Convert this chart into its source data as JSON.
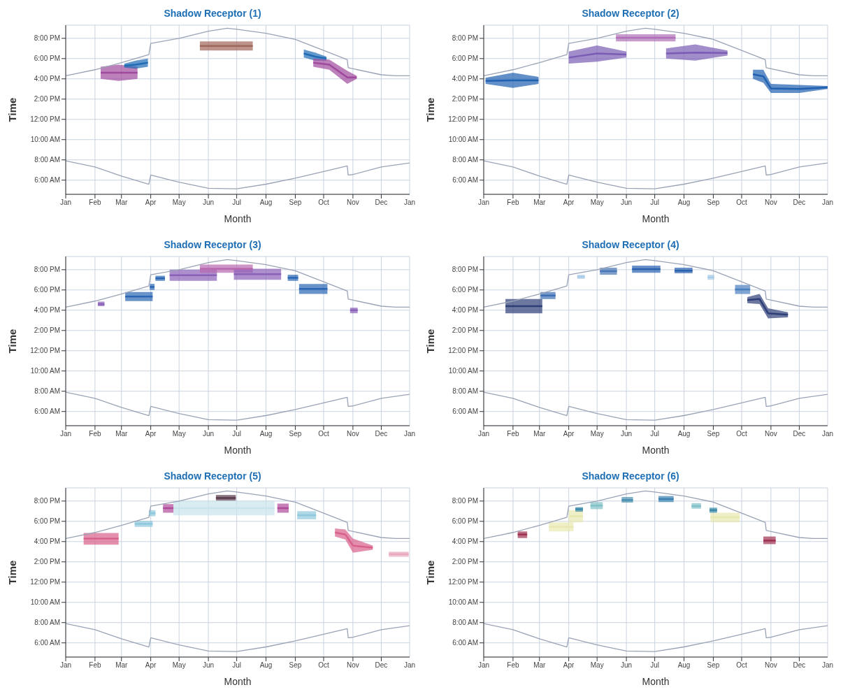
{
  "chart_data": [
    {
      "type": "line",
      "title": "Shadow Receptor (1)",
      "xlabel": "Month",
      "ylabel": "Time",
      "xlim": [
        "--01-01",
        "--12-31"
      ],
      "ylim": [
        4.6,
        21.3
      ],
      "grid": true,
      "annotations": [
        "Jan"
      ],
      "xticks": [
        {
          "value": "--01-01",
          "label": "Jan"
        },
        {
          "value": "--02-01",
          "label": "Feb"
        },
        {
          "value": "--03-01",
          "label": "Mar"
        },
        {
          "value": "--04-01",
          "label": "Apr"
        },
        {
          "value": "--05-01",
          "label": "May"
        },
        {
          "value": "--06-01",
          "label": "Jun"
        },
        {
          "value": "--07-01",
          "label": "Jul"
        },
        {
          "value": "--08-01",
          "label": "Aug"
        },
        {
          "value": "--09-01",
          "label": "Sep"
        },
        {
          "value": "--10-01",
          "label": "Oct"
        },
        {
          "value": "--11-01",
          "label": "Nov"
        },
        {
          "value": "--12-01",
          "label": "Dec"
        }
      ],
      "yticks": [
        {
          "value": 6,
          "label": "6:00 AM"
        },
        {
          "value": 8,
          "label": "8:00 AM"
        },
        {
          "value": 10,
          "label": "10:00 AM"
        },
        {
          "value": 12,
          "label": "12:00 PM"
        },
        {
          "value": 14,
          "label": "2:00 PM"
        },
        {
          "value": 16,
          "label": "4:00 PM"
        },
        {
          "value": 18,
          "label": "6:00 PM"
        },
        {
          "value": 20,
          "label": "8:00 PM"
        }
      ],
      "series": [
        {
          "color": "#9aa3b5",
          "x": [
            "--01-01",
            "--02-01",
            "--03-01",
            "--03-30",
            "--04-01",
            "--05-01",
            "--06-01",
            "--06-21",
            "--07-01",
            "--08-01",
            "--09-01",
            "--10-01",
            "--10-26",
            "--10-27",
            "--12-01",
            "--12-16",
            "--12-31"
          ],
          "values": [
            16.3,
            16.9,
            17.6,
            18.4,
            19.5,
            20.0,
            20.7,
            21.0,
            20.9,
            20.5,
            19.9,
            18.8,
            17.9,
            17.1,
            16.4,
            16.3,
            16.3
          ]
        },
        {
          "color": "#9aa3b5",
          "x": [
            "--01-01",
            "--02-01",
            "--03-01",
            "--03-30",
            "--04-01",
            "--05-01",
            "--06-01",
            "--07-01",
            "--08-01",
            "--09-01",
            "--10-01",
            "--10-26",
            "--10-27",
            "--11-01",
            "--12-01",
            "--12-31"
          ],
          "values": [
            7.9,
            7.3,
            6.4,
            5.6,
            6.5,
            5.8,
            5.2,
            5.15,
            5.6,
            6.2,
            6.85,
            7.4,
            6.5,
            6.55,
            7.3,
            7.7
          ]
        },
        {
          "color": "#a04a9e",
          "x": [
            "--02-07",
            "--02-26",
            "--03-18"
          ],
          "lower": [
            16.0,
            15.8,
            16.0
          ],
          "upper": [
            17.2,
            17.4,
            17.2
          ],
          "values": [
            16.6,
            16.6,
            16.6
          ]
        },
        {
          "color": "#1f6bb5",
          "x": [
            "--03-04",
            "--03-16",
            "--03-29"
          ],
          "lower": [
            17.1,
            17.0,
            17.2
          ],
          "upper": [
            17.5,
            17.8,
            18.0
          ],
          "values": [
            17.3,
            17.4,
            17.6
          ]
        },
        {
          "color": "#a0665a",
          "x": [
            "--05-23",
            "--06-19",
            "--07-18"
          ],
          "lower": [
            18.8,
            18.8,
            18.8
          ],
          "upper": [
            19.7,
            19.7,
            19.7
          ],
          "values": [
            19.25,
            19.25,
            19.25
          ]
        },
        {
          "color": "#1f6bb5",
          "x": [
            "--09-10",
            "--09-22",
            "--10-04"
          ],
          "lower": [
            18.1,
            17.8,
            17.8
          ],
          "upper": [
            18.9,
            18.6,
            18.2
          ],
          "values": [
            18.5,
            18.2,
            18.0
          ]
        },
        {
          "color": "#a04a9e",
          "x": [
            "--09-20",
            "--10-07",
            "--10-26",
            "--11-05"
          ],
          "lower": [
            17.2,
            16.9,
            15.5,
            16.0
          ],
          "upper": [
            18.0,
            17.9,
            16.8,
            16.3
          ],
          "values": [
            17.6,
            17.4,
            16.15,
            16.15
          ]
        }
      ]
    },
    {
      "type": "line",
      "title": "Shadow Receptor (2)",
      "xlabel": "Month",
      "ylabel": "Time",
      "xlim": [
        "--01-01",
        "--12-31"
      ],
      "ylim": [
        4.6,
        21.3
      ],
      "grid": true,
      "annotations": [
        "Jan"
      ],
      "xticks": [
        {
          "value": "--01-01",
          "label": "Jan"
        },
        {
          "value": "--02-01",
          "label": "Feb"
        },
        {
          "value": "--03-01",
          "label": "Mar"
        },
        {
          "value": "--04-01",
          "label": "Apr"
        },
        {
          "value": "--05-01",
          "label": "May"
        },
        {
          "value": "--06-01",
          "label": "Jun"
        },
        {
          "value": "--07-01",
          "label": "Jul"
        },
        {
          "value": "--08-01",
          "label": "Aug"
        },
        {
          "value": "--09-01",
          "label": "Sep"
        },
        {
          "value": "--10-01",
          "label": "Oct"
        },
        {
          "value": "--11-01",
          "label": "Nov"
        },
        {
          "value": "--12-01",
          "label": "Dec"
        }
      ],
      "yticks": [
        {
          "value": 6,
          "label": "6:00 AM"
        },
        {
          "value": 8,
          "label": "8:00 AM"
        },
        {
          "value": 10,
          "label": "10:00 AM"
        },
        {
          "value": 12,
          "label": "12:00 PM"
        },
        {
          "value": 14,
          "label": "2:00 PM"
        },
        {
          "value": 16,
          "label": "4:00 PM"
        },
        {
          "value": 18,
          "label": "6:00 PM"
        },
        {
          "value": 20,
          "label": "8:00 PM"
        }
      ],
      "series": [
        {
          "color": "#9aa3b5",
          "x": [
            "--01-01",
            "--02-01",
            "--03-01",
            "--03-30",
            "--04-01",
            "--05-01",
            "--06-01",
            "--06-21",
            "--07-01",
            "--08-01",
            "--09-01",
            "--10-01",
            "--10-26",
            "--10-27",
            "--12-01",
            "--12-16",
            "--12-31"
          ],
          "values": [
            16.3,
            16.9,
            17.6,
            18.4,
            19.5,
            20.0,
            20.7,
            21.0,
            20.9,
            20.5,
            19.9,
            18.8,
            17.9,
            17.1,
            16.4,
            16.3,
            16.3
          ]
        },
        {
          "color": "#9aa3b5",
          "x": [
            "--01-01",
            "--02-01",
            "--03-01",
            "--03-30",
            "--04-01",
            "--05-01",
            "--06-01",
            "--07-01",
            "--08-01",
            "--09-01",
            "--10-01",
            "--10-26",
            "--10-27",
            "--11-01",
            "--12-01",
            "--12-31"
          ],
          "values": [
            7.9,
            7.3,
            6.4,
            5.6,
            6.5,
            5.8,
            5.2,
            5.15,
            5.6,
            6.2,
            6.85,
            7.4,
            6.5,
            6.55,
            7.3,
            7.7
          ]
        },
        {
          "color": "#2060b0",
          "x": [
            "--01-03",
            "--02-01",
            "--02-28"
          ],
          "lower": [
            15.5,
            15.1,
            15.5
          ],
          "upper": [
            16.1,
            16.6,
            16.2
          ],
          "values": [
            15.8,
            15.85,
            15.85
          ]
        },
        {
          "color": "#7a5cb5",
          "x": [
            "--04-01",
            "--05-01",
            "--06-01"
          ],
          "lower": [
            17.5,
            17.7,
            18.1
          ],
          "upper": [
            18.7,
            19.3,
            18.7
          ],
          "values": [
            18.1,
            18.5,
            18.4
          ]
        },
        {
          "color": "#b070b8",
          "x": [
            "--05-21",
            "--07-23"
          ],
          "lower": [
            19.7,
            19.7
          ],
          "upper": [
            20.4,
            20.4
          ],
          "values": [
            20.05,
            20.05
          ]
        },
        {
          "color": "#7a5cb5",
          "x": [
            "--07-13",
            "--08-13",
            "--09-16"
          ],
          "lower": [
            18.0,
            17.8,
            18.3
          ],
          "upper": [
            19.0,
            19.4,
            18.8
          ],
          "values": [
            18.5,
            18.6,
            18.55
          ]
        },
        {
          "color": "#2060b0",
          "x": [
            "--10-13",
            "--10-24",
            "--11-01",
            "--12-01",
            "--12-31"
          ],
          "lower": [
            16.0,
            15.6,
            14.6,
            14.6,
            15.0
          ],
          "upper": [
            16.9,
            16.9,
            15.5,
            15.4,
            15.3
          ],
          "values": [
            16.45,
            16.25,
            15.05,
            15.0,
            15.15
          ]
        }
      ]
    },
    {
      "type": "line",
      "title": "Shadow Receptor (3)",
      "xlabel": "Month",
      "ylabel": "Time",
      "xlim": [
        "--01-01",
        "--12-31"
      ],
      "ylim": [
        4.6,
        21.3
      ],
      "grid": true,
      "annotations": [
        "Jan"
      ],
      "xticks": [
        {
          "value": "--01-01",
          "label": "Jan"
        },
        {
          "value": "--02-01",
          "label": "Feb"
        },
        {
          "value": "--03-01",
          "label": "Mar"
        },
        {
          "value": "--04-01",
          "label": "Apr"
        },
        {
          "value": "--05-01",
          "label": "May"
        },
        {
          "value": "--06-01",
          "label": "Jun"
        },
        {
          "value": "--07-01",
          "label": "Jul"
        },
        {
          "value": "--08-01",
          "label": "Aug"
        },
        {
          "value": "--09-01",
          "label": "Sep"
        },
        {
          "value": "--10-01",
          "label": "Oct"
        },
        {
          "value": "--11-01",
          "label": "Nov"
        },
        {
          "value": "--12-01",
          "label": "Dec"
        }
      ],
      "yticks": [
        {
          "value": 6,
          "label": "6:00 AM"
        },
        {
          "value": 8,
          "label": "8:00 AM"
        },
        {
          "value": 10,
          "label": "10:00 AM"
        },
        {
          "value": 12,
          "label": "12:00 PM"
        },
        {
          "value": 14,
          "label": "2:00 PM"
        },
        {
          "value": 16,
          "label": "4:00 PM"
        },
        {
          "value": 18,
          "label": "6:00 PM"
        },
        {
          "value": 20,
          "label": "8:00 PM"
        }
      ],
      "series": [
        {
          "color": "#9aa3b5",
          "x": [
            "--01-01",
            "--02-01",
            "--03-01",
            "--03-30",
            "--04-01",
            "--05-01",
            "--06-01",
            "--06-21",
            "--07-01",
            "--08-01",
            "--09-01",
            "--10-01",
            "--10-26",
            "--10-27",
            "--12-01",
            "--12-16",
            "--12-31"
          ],
          "values": [
            16.3,
            16.9,
            17.6,
            18.4,
            19.5,
            20.0,
            20.7,
            21.0,
            20.9,
            20.5,
            19.9,
            18.8,
            17.9,
            17.1,
            16.4,
            16.3,
            16.3
          ]
        },
        {
          "color": "#9aa3b5",
          "x": [
            "--01-01",
            "--02-01",
            "--03-01",
            "--03-30",
            "--04-01",
            "--05-01",
            "--06-01",
            "--07-01",
            "--08-01",
            "--09-01",
            "--10-01",
            "--10-26",
            "--10-27",
            "--11-01",
            "--12-01",
            "--12-31"
          ],
          "values": [
            7.9,
            7.3,
            6.4,
            5.6,
            6.5,
            5.8,
            5.2,
            5.15,
            5.6,
            6.2,
            6.85,
            7.4,
            6.5,
            6.55,
            7.3,
            7.7
          ]
        },
        {
          "color": "#8a60b8",
          "x": [
            "--02-04",
            "--02-11"
          ],
          "lower": [
            16.4,
            16.4
          ],
          "upper": [
            16.85,
            16.85
          ],
          "values": [
            16.6,
            16.6
          ]
        },
        {
          "color": "#2a66b4",
          "x": [
            "--03-05",
            "--04-03"
          ],
          "lower": [
            16.9,
            16.9
          ],
          "upper": [
            17.8,
            17.8
          ],
          "values": [
            17.35,
            17.35
          ]
        },
        {
          "color": "#2a66b4",
          "x": [
            "--03-31",
            "--04-05"
          ],
          "lower": [
            18.0,
            18.0
          ],
          "upper": [
            18.6,
            18.6
          ],
          "values": [
            18.3,
            18.3
          ]
        },
        {
          "color": "#2a66b4",
          "x": [
            "--04-06",
            "--04-16"
          ],
          "lower": [
            18.9,
            18.9
          ],
          "upper": [
            19.4,
            19.4
          ],
          "values": [
            19.15,
            19.15
          ]
        },
        {
          "color": "#8a60b8",
          "x": [
            "--04-21",
            "--06-10"
          ],
          "lower": [
            18.9,
            18.9
          ],
          "upper": [
            20.0,
            20.0
          ],
          "values": [
            19.45,
            19.45
          ]
        },
        {
          "color": "#b868b0",
          "x": [
            "--05-23",
            "--07-18"
          ],
          "lower": [
            19.7,
            19.7
          ],
          "upper": [
            20.5,
            20.5
          ],
          "values": [
            20.1,
            20.1
          ]
        },
        {
          "color": "#8a60b8",
          "x": [
            "--06-28",
            "--08-17"
          ],
          "lower": [
            19.0,
            19.0
          ],
          "upper": [
            20.1,
            20.1
          ],
          "values": [
            19.55,
            19.55
          ]
        },
        {
          "color": "#2a66b4",
          "x": [
            "--08-24",
            "--09-04"
          ],
          "lower": [
            18.9,
            18.9
          ],
          "upper": [
            19.5,
            19.5
          ],
          "values": [
            19.2,
            19.2
          ]
        },
        {
          "color": "#2a66b4",
          "x": [
            "--09-05",
            "--10-05"
          ],
          "lower": [
            17.6,
            17.6
          ],
          "upper": [
            18.6,
            18.6
          ],
          "values": [
            18.1,
            18.1
          ]
        },
        {
          "color": "#8a60b8",
          "x": [
            "--10-29",
            "--11-06"
          ],
          "lower": [
            15.7,
            15.7
          ],
          "upper": [
            16.25,
            16.25
          ],
          "values": [
            16.0,
            16.0
          ]
        }
      ]
    },
    {
      "type": "line",
      "title": "Shadow Receptor (4)",
      "xlabel": "Month",
      "ylabel": "Time",
      "xlim": [
        "--01-01",
        "--12-31"
      ],
      "ylim": [
        4.6,
        21.3
      ],
      "grid": true,
      "annotations": [
        "Jan"
      ],
      "xticks": [
        {
          "value": "--01-01",
          "label": "Jan"
        },
        {
          "value": "--02-01",
          "label": "Feb"
        },
        {
          "value": "--03-01",
          "label": "Mar"
        },
        {
          "value": "--04-01",
          "label": "Apr"
        },
        {
          "value": "--05-01",
          "label": "May"
        },
        {
          "value": "--06-01",
          "label": "Jun"
        },
        {
          "value": "--07-01",
          "label": "Jul"
        },
        {
          "value": "--08-01",
          "label": "Aug"
        },
        {
          "value": "--09-01",
          "label": "Sep"
        },
        {
          "value": "--10-01",
          "label": "Oct"
        },
        {
          "value": "--11-01",
          "label": "Nov"
        },
        {
          "value": "--12-01",
          "label": "Dec"
        }
      ],
      "yticks": [
        {
          "value": 6,
          "label": "6:00 AM"
        },
        {
          "value": 8,
          "label": "8:00 AM"
        },
        {
          "value": 10,
          "label": "10:00 AM"
        },
        {
          "value": 12,
          "label": "12:00 PM"
        },
        {
          "value": 14,
          "label": "2:00 PM"
        },
        {
          "value": 16,
          "label": "4:00 PM"
        },
        {
          "value": 18,
          "label": "6:00 PM"
        },
        {
          "value": 20,
          "label": "8:00 PM"
        }
      ],
      "series": [
        {
          "color": "#9aa3b5",
          "x": [
            "--01-01",
            "--02-01",
            "--03-01",
            "--03-30",
            "--04-01",
            "--05-01",
            "--06-01",
            "--06-21",
            "--07-01",
            "--08-01",
            "--09-01",
            "--10-01",
            "--10-26",
            "--10-27",
            "--12-01",
            "--12-16",
            "--12-31"
          ],
          "values": [
            16.3,
            16.9,
            17.6,
            18.4,
            19.5,
            20.0,
            20.7,
            21.0,
            20.9,
            20.5,
            19.9,
            18.8,
            17.9,
            17.1,
            16.4,
            16.3,
            16.3
          ]
        },
        {
          "color": "#9aa3b5",
          "x": [
            "--01-01",
            "--02-01",
            "--03-01",
            "--03-30",
            "--04-01",
            "--05-01",
            "--06-01",
            "--07-01",
            "--08-01",
            "--09-01",
            "--10-01",
            "--10-26",
            "--10-27",
            "--11-01",
            "--12-01",
            "--12-31"
          ],
          "values": [
            7.9,
            7.3,
            6.4,
            5.6,
            6.5,
            5.8,
            5.2,
            5.15,
            5.6,
            6.2,
            6.85,
            7.4,
            6.5,
            6.55,
            7.3,
            7.7
          ]
        },
        {
          "color": "#2e3f78",
          "x": [
            "--01-24",
            "--03-04"
          ],
          "lower": [
            15.7,
            15.7
          ],
          "upper": [
            17.1,
            17.1
          ],
          "values": [
            16.4,
            16.4
          ]
        },
        {
          "color": "#3d6fb5",
          "x": [
            "--03-02",
            "--03-18"
          ],
          "lower": [
            17.1,
            17.1
          ],
          "upper": [
            17.8,
            17.8
          ],
          "values": [
            17.45,
            17.45
          ]
        },
        {
          "color": "#a8cce8",
          "x": [
            "--04-10",
            "--04-18"
          ],
          "lower": [
            19.1,
            19.1
          ],
          "upper": [
            19.5,
            19.5
          ],
          "values": [
            19.3,
            19.3
          ]
        },
        {
          "color": "#4a77b5",
          "x": [
            "--05-04",
            "--05-22"
          ],
          "lower": [
            19.5,
            19.5
          ],
          "upper": [
            20.2,
            20.2
          ],
          "values": [
            19.85,
            19.85
          ]
        },
        {
          "color": "#2a62b0",
          "x": [
            "--06-07",
            "--07-07"
          ],
          "lower": [
            19.7,
            19.7
          ],
          "upper": [
            20.4,
            20.4
          ],
          "values": [
            20.05,
            20.05
          ]
        },
        {
          "color": "#2a62b0",
          "x": [
            "--07-22",
            "--08-10"
          ],
          "lower": [
            19.65,
            19.65
          ],
          "upper": [
            20.2,
            20.2
          ],
          "values": [
            19.9,
            19.9
          ]
        },
        {
          "color": "#a8cce8",
          "x": [
            "--08-26",
            "--09-02"
          ],
          "lower": [
            19.0,
            19.0
          ],
          "upper": [
            19.5,
            19.5
          ],
          "values": [
            19.25,
            19.25
          ]
        },
        {
          "color": "#4a7fc0",
          "x": [
            "--09-24",
            "--10-10"
          ],
          "lower": [
            17.6,
            17.6
          ],
          "upper": [
            18.5,
            18.5
          ],
          "values": [
            18.05,
            18.05
          ]
        },
        {
          "color": "#2e3f78",
          "x": [
            "--10-07",
            "--10-20",
            "--10-29",
            "--11-19"
          ],
          "lower": [
            16.7,
            16.6,
            15.2,
            15.3
          ],
          "upper": [
            17.3,
            17.6,
            16.2,
            15.8
          ],
          "values": [
            17.0,
            17.1,
            15.7,
            15.55
          ]
        }
      ]
    },
    {
      "type": "line",
      "title": "Shadow Receptor (5)",
      "xlabel": "Month",
      "ylabel": "Time",
      "xlim": [
        "--01-01",
        "--12-31"
      ],
      "ylim": [
        4.6,
        21.3
      ],
      "grid": true,
      "annotations": [
        "Jan"
      ],
      "xticks": [
        {
          "value": "--01-01",
          "label": "Jan"
        },
        {
          "value": "--02-01",
          "label": "Feb"
        },
        {
          "value": "--03-01",
          "label": "Mar"
        },
        {
          "value": "--04-01",
          "label": "Apr"
        },
        {
          "value": "--05-01",
          "label": "May"
        },
        {
          "value": "--06-01",
          "label": "Jun"
        },
        {
          "value": "--07-01",
          "label": "Jul"
        },
        {
          "value": "--08-01",
          "label": "Aug"
        },
        {
          "value": "--09-01",
          "label": "Sep"
        },
        {
          "value": "--10-01",
          "label": "Oct"
        },
        {
          "value": "--11-01",
          "label": "Nov"
        },
        {
          "value": "--12-01",
          "label": "Dec"
        }
      ],
      "yticks": [
        {
          "value": 6,
          "label": "6:00 AM"
        },
        {
          "value": 8,
          "label": "8:00 AM"
        },
        {
          "value": 10,
          "label": "10:00 AM"
        },
        {
          "value": 12,
          "label": "12:00 PM"
        },
        {
          "value": 14,
          "label": "2:00 PM"
        },
        {
          "value": 16,
          "label": "4:00 PM"
        },
        {
          "value": 18,
          "label": "6:00 PM"
        },
        {
          "value": 20,
          "label": "8:00 PM"
        }
      ],
      "series": [
        {
          "color": "#9aa3b5",
          "x": [
            "--01-01",
            "--02-01",
            "--03-01",
            "--03-30",
            "--04-01",
            "--05-01",
            "--06-01",
            "--06-21",
            "--07-01",
            "--08-01",
            "--09-01",
            "--10-01",
            "--10-26",
            "--10-27",
            "--12-01",
            "--12-16",
            "--12-31"
          ],
          "values": [
            16.3,
            16.9,
            17.6,
            18.4,
            19.5,
            20.0,
            20.7,
            21.0,
            20.9,
            20.5,
            19.9,
            18.8,
            17.9,
            17.1,
            16.4,
            16.3,
            16.3
          ]
        },
        {
          "color": "#9aa3b5",
          "x": [
            "--01-01",
            "--02-01",
            "--03-01",
            "--03-30",
            "--04-01",
            "--05-01",
            "--06-01",
            "--07-01",
            "--08-01",
            "--09-01",
            "--10-01",
            "--10-26",
            "--10-27",
            "--11-01",
            "--12-01",
            "--12-31"
          ],
          "values": [
            7.9,
            7.3,
            6.4,
            5.6,
            6.5,
            5.8,
            5.2,
            5.15,
            5.6,
            6.2,
            6.85,
            7.4,
            6.5,
            6.55,
            7.3,
            7.7
          ]
        },
        {
          "color": "#c8e4ec",
          "x": [
            "--04-25",
            "--08-10"
          ],
          "lower": [
            18.6,
            18.6
          ],
          "upper": [
            20.0,
            20.0
          ],
          "values": [
            19.3,
            19.3
          ]
        },
        {
          "color": "#d9608a",
          "x": [
            "--01-20",
            "--02-26"
          ],
          "lower": [
            15.7,
            15.7
          ],
          "upper": [
            16.85,
            16.85
          ],
          "values": [
            16.3,
            16.3
          ]
        },
        {
          "color": "#8ec8dc",
          "x": [
            "--03-15",
            "--04-03"
          ],
          "lower": [
            17.45,
            17.45
          ],
          "upper": [
            18.05,
            18.05
          ],
          "values": [
            17.75,
            17.75
          ]
        },
        {
          "color": "#8ec8dc",
          "x": [
            "--03-30",
            "--04-06"
          ],
          "lower": [
            18.5,
            18.5
          ],
          "upper": [
            19.1,
            19.1
          ],
          "values": [
            18.8,
            18.8
          ]
        },
        {
          "color": "#b04a9a",
          "x": [
            "--04-14",
            "--04-25"
          ],
          "lower": [
            18.85,
            18.85
          ],
          "upper": [
            19.7,
            19.7
          ],
          "values": [
            19.3,
            19.3
          ]
        },
        {
          "color": "#5a3a4a",
          "x": [
            "--06-09",
            "--06-30"
          ],
          "lower": [
            20.05,
            20.05
          ],
          "upper": [
            20.6,
            20.6
          ],
          "values": [
            20.3,
            20.3
          ]
        },
        {
          "color": "#b04a9a",
          "x": [
            "--08-13",
            "--08-25"
          ],
          "lower": [
            18.85,
            18.85
          ],
          "upper": [
            19.75,
            19.75
          ],
          "values": [
            19.3,
            19.3
          ]
        },
        {
          "color": "#8ec8dc",
          "x": [
            "--09-03",
            "--09-23"
          ],
          "lower": [
            18.2,
            18.2
          ],
          "upper": [
            19.0,
            19.0
          ],
          "values": [
            18.6,
            18.6
          ]
        },
        {
          "color": "#d9608a",
          "x": [
            "--10-13",
            "--10-24",
            "--11-01",
            "--11-22"
          ],
          "lower": [
            16.5,
            16.2,
            14.9,
            15.2
          ],
          "upper": [
            17.3,
            17.2,
            16.3,
            15.6
          ],
          "values": [
            16.9,
            16.7,
            15.6,
            15.4
          ]
        },
        {
          "color": "#e8a8c0",
          "x": [
            "--12-09",
            "--12-30"
          ],
          "lower": [
            14.5,
            14.5
          ],
          "upper": [
            15.0,
            15.0
          ],
          "values": [
            14.75,
            14.75
          ]
        }
      ]
    },
    {
      "type": "line",
      "title": "Shadow Receptor (6)",
      "xlabel": "Month",
      "ylabel": "Time",
      "xlim": [
        "--01-01",
        "--12-31"
      ],
      "ylim": [
        4.6,
        21.3
      ],
      "grid": true,
      "annotations": [
        "Jan"
      ],
      "xticks": [
        {
          "value": "--01-01",
          "label": "Jan"
        },
        {
          "value": "--02-01",
          "label": "Feb"
        },
        {
          "value": "--03-01",
          "label": "Mar"
        },
        {
          "value": "--04-01",
          "label": "Apr"
        },
        {
          "value": "--05-01",
          "label": "May"
        },
        {
          "value": "--06-01",
          "label": "Jun"
        },
        {
          "value": "--07-01",
          "label": "Jul"
        },
        {
          "value": "--08-01",
          "label": "Aug"
        },
        {
          "value": "--09-01",
          "label": "Sep"
        },
        {
          "value": "--10-01",
          "label": "Oct"
        },
        {
          "value": "--11-01",
          "label": "Nov"
        },
        {
          "value": "--12-01",
          "label": "Dec"
        }
      ],
      "yticks": [
        {
          "value": 6,
          "label": "6:00 AM"
        },
        {
          "value": 8,
          "label": "8:00 AM"
        },
        {
          "value": 10,
          "label": "10:00 AM"
        },
        {
          "value": 12,
          "label": "12:00 PM"
        },
        {
          "value": 14,
          "label": "2:00 PM"
        },
        {
          "value": 16,
          "label": "4:00 PM"
        },
        {
          "value": 18,
          "label": "6:00 PM"
        },
        {
          "value": 20,
          "label": "8:00 PM"
        }
      ],
      "series": [
        {
          "color": "#9aa3b5",
          "x": [
            "--01-01",
            "--02-01",
            "--03-01",
            "--03-30",
            "--04-01",
            "--05-01",
            "--06-01",
            "--06-21",
            "--07-01",
            "--08-01",
            "--09-01",
            "--10-01",
            "--10-26",
            "--10-27",
            "--12-01",
            "--12-16",
            "--12-31"
          ],
          "values": [
            16.3,
            16.9,
            17.6,
            18.4,
            19.5,
            20.0,
            20.7,
            21.0,
            20.9,
            20.5,
            19.9,
            18.8,
            17.9,
            17.1,
            16.4,
            16.3,
            16.3
          ]
        },
        {
          "color": "#9aa3b5",
          "x": [
            "--01-01",
            "--02-01",
            "--03-01",
            "--03-30",
            "--04-01",
            "--05-01",
            "--06-01",
            "--07-01",
            "--08-01",
            "--09-01",
            "--10-01",
            "--10-26",
            "--10-27",
            "--11-01",
            "--12-01",
            "--12-31"
          ],
          "values": [
            7.9,
            7.3,
            6.4,
            5.6,
            6.5,
            5.8,
            5.2,
            5.15,
            5.6,
            6.2,
            6.85,
            7.4,
            6.5,
            6.55,
            7.3,
            7.7
          ]
        },
        {
          "color": "#a03050",
          "x": [
            "--02-06",
            "--02-16"
          ],
          "lower": [
            16.35,
            16.35
          ],
          "upper": [
            17.0,
            17.0
          ],
          "values": [
            16.7,
            16.7
          ]
        },
        {
          "color": "#e8e8b0",
          "x": [
            "--03-11",
            "--04-06"
          ],
          "lower": [
            17.0,
            17.0
          ],
          "upper": [
            17.9,
            17.9
          ],
          "values": [
            17.45,
            17.45
          ]
        },
        {
          "color": "#e8e8b0",
          "x": [
            "--04-01",
            "--04-16"
          ],
          "lower": [
            17.9,
            17.9
          ],
          "upper": [
            19.1,
            19.1
          ],
          "values": [
            18.5,
            18.5
          ]
        },
        {
          "color": "#3a8aa8",
          "x": [
            "--04-08",
            "--04-16"
          ],
          "lower": [
            18.95,
            18.95
          ],
          "upper": [
            19.4,
            19.4
          ],
          "values": [
            19.2,
            19.2
          ]
        },
        {
          "color": "#80c0c8",
          "x": [
            "--04-24",
            "--05-07"
          ],
          "lower": [
            19.2,
            19.2
          ],
          "upper": [
            19.9,
            19.9
          ],
          "values": [
            19.55,
            19.55
          ]
        },
        {
          "color": "#4a90b0",
          "x": [
            "--05-27",
            "--06-08"
          ],
          "lower": [
            19.85,
            19.85
          ],
          "upper": [
            20.4,
            20.4
          ],
          "values": [
            20.1,
            20.1
          ]
        },
        {
          "color": "#3a80b0",
          "x": [
            "--07-05",
            "--07-21"
          ],
          "lower": [
            19.9,
            19.9
          ],
          "upper": [
            20.5,
            20.5
          ],
          "values": [
            20.2,
            20.2
          ]
        },
        {
          "color": "#80c0c8",
          "x": [
            "--08-09",
            "--08-19"
          ],
          "lower": [
            19.25,
            19.25
          ],
          "upper": [
            19.8,
            19.8
          ],
          "values": [
            19.5,
            19.5
          ]
        },
        {
          "color": "#e8e8b0",
          "x": [
            "--08-29",
            "--09-29"
          ],
          "lower": [
            17.9,
            17.9
          ],
          "upper": [
            18.85,
            18.85
          ],
          "values": [
            18.4,
            18.4
          ]
        },
        {
          "color": "#3a8aa8",
          "x": [
            "--08-28",
            "--09-05"
          ],
          "lower": [
            18.85,
            18.85
          ],
          "upper": [
            19.35,
            19.35
          ],
          "values": [
            19.1,
            19.1
          ]
        },
        {
          "color": "#a03050",
          "x": [
            "--10-24",
            "--11-06"
          ],
          "lower": [
            15.75,
            15.75
          ],
          "upper": [
            16.5,
            16.5
          ],
          "values": [
            16.1,
            16.1
          ]
        }
      ]
    }
  ]
}
